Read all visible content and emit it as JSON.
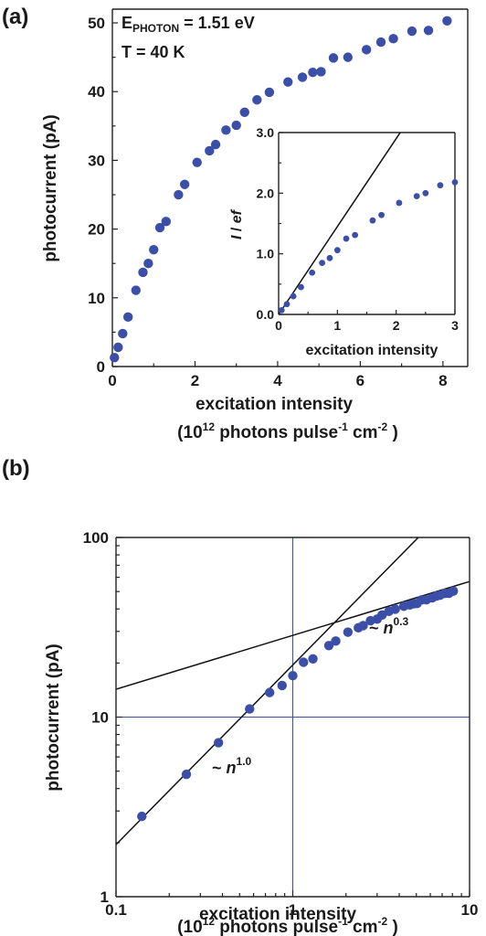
{
  "chart_data": [
    {
      "panel": "(a)",
      "type": "scatter",
      "xlabel": "excitation intensity",
      "xlabel_line2": {
        "prefix": "(10",
        "sup": "12",
        "mid": " photons pulse",
        "sup2": "-1",
        "mid2": " cm",
        "sup3": "-2",
        "suffix": " )"
      },
      "ylabel": "photocurrent (pA)",
      "xlim": [
        0,
        8.6
      ],
      "ylim": [
        0,
        52
      ],
      "xticks": [
        0,
        2,
        4,
        6,
        8
      ],
      "yticks": [
        0,
        10,
        20,
        30,
        40,
        50
      ],
      "annotations": [
        {
          "base": "E",
          "sub": "PHOTON",
          "rest": " = 1.51 eV"
        },
        {
          "base": "T = 40 K",
          "sub": "",
          "rest": ""
        }
      ],
      "color": "#3b4fa8",
      "points": [
        [
          0.05,
          1.3
        ],
        [
          0.14,
          2.8
        ],
        [
          0.25,
          4.8
        ],
        [
          0.38,
          7.2
        ],
        [
          0.57,
          11.1
        ],
        [
          0.74,
          13.7
        ],
        [
          0.87,
          15.0
        ],
        [
          1.0,
          17.0
        ],
        [
          1.15,
          20.2
        ],
        [
          1.3,
          21.1
        ],
        [
          1.6,
          25.0
        ],
        [
          1.75,
          26.5
        ],
        [
          2.05,
          29.7
        ],
        [
          2.35,
          31.4
        ],
        [
          2.5,
          32.3
        ],
        [
          2.75,
          34.4
        ],
        [
          3.0,
          35.1
        ],
        [
          3.2,
          37.0
        ],
        [
          3.5,
          38.8
        ],
        [
          3.8,
          39.9
        ],
        [
          4.25,
          41.4
        ],
        [
          4.6,
          42.1
        ],
        [
          4.85,
          42.8
        ],
        [
          5.05,
          42.9
        ],
        [
          5.35,
          44.9
        ],
        [
          5.7,
          45.0
        ],
        [
          6.15,
          46.1
        ],
        [
          6.5,
          47.2
        ],
        [
          6.8,
          47.7
        ],
        [
          7.25,
          48.8
        ],
        [
          7.65,
          48.9
        ],
        [
          8.1,
          50.3
        ]
      ],
      "inset": {
        "type": "scatter",
        "xlabel": "excitation intensity",
        "ylabel": {
          "italic": "I",
          "rest": " / ",
          "italic2": "ef"
        },
        "xlim": [
          0,
          3
        ],
        "ylim": [
          0,
          3
        ],
        "xticks": [
          0,
          1,
          2,
          3
        ],
        "yticks": [
          0.0,
          1.0,
          2.0,
          3.0
        ],
        "ytick_labels": [
          "0.0",
          "1.0",
          "2.0",
          "3.0"
        ],
        "fit_line": {
          "slope": 1.45,
          "x_range": [
            0,
            2.07
          ]
        },
        "points": [
          [
            0.05,
            0.07
          ],
          [
            0.14,
            0.17
          ],
          [
            0.25,
            0.3
          ],
          [
            0.38,
            0.45
          ],
          [
            0.57,
            0.69
          ],
          [
            0.74,
            0.85
          ],
          [
            0.87,
            0.93
          ],
          [
            1.0,
            1.06
          ],
          [
            1.15,
            1.25
          ],
          [
            1.3,
            1.31
          ],
          [
            1.6,
            1.55
          ],
          [
            1.75,
            1.64
          ],
          [
            2.05,
            1.84
          ],
          [
            2.35,
            1.95
          ],
          [
            2.5,
            2.0
          ],
          [
            2.75,
            2.13
          ],
          [
            3.0,
            2.18
          ]
        ]
      }
    },
    {
      "panel": "(b)",
      "type": "scatter",
      "xscale": "log",
      "yscale": "log",
      "xlabel": "excitation intensity",
      "xlabel_line2": {
        "prefix": "(10",
        "sup": "12",
        "mid": " photons pulse",
        "sup2": "-1",
        "mid2": " cm",
        "sup3": "-2",
        "suffix": " )"
      },
      "ylabel": "photocurrent (pA)",
      "xlim": [
        0.1,
        10
      ],
      "ylim": [
        1,
        100
      ],
      "xticks": [
        0.1,
        1,
        10
      ],
      "xtick_labels": [
        "0.1",
        "1",
        "10"
      ],
      "yticks": [
        1,
        10,
        100
      ],
      "ytick_labels": [
        "1",
        "10",
        "100"
      ],
      "reference_lines": {
        "x": 1,
        "y": 10
      },
      "power_law_fits": [
        {
          "label": {
            "prefix": "~ ",
            "var": "n",
            "exp": "1.0"
          },
          "amplitude": 19.5,
          "exponent": 1.0
        },
        {
          "label": {
            "prefix": "~ ",
            "var": "n",
            "exp": "0.3"
          },
          "amplitude": 28.5,
          "exponent": 0.3
        }
      ],
      "color": "#3b4fa8"
    }
  ]
}
